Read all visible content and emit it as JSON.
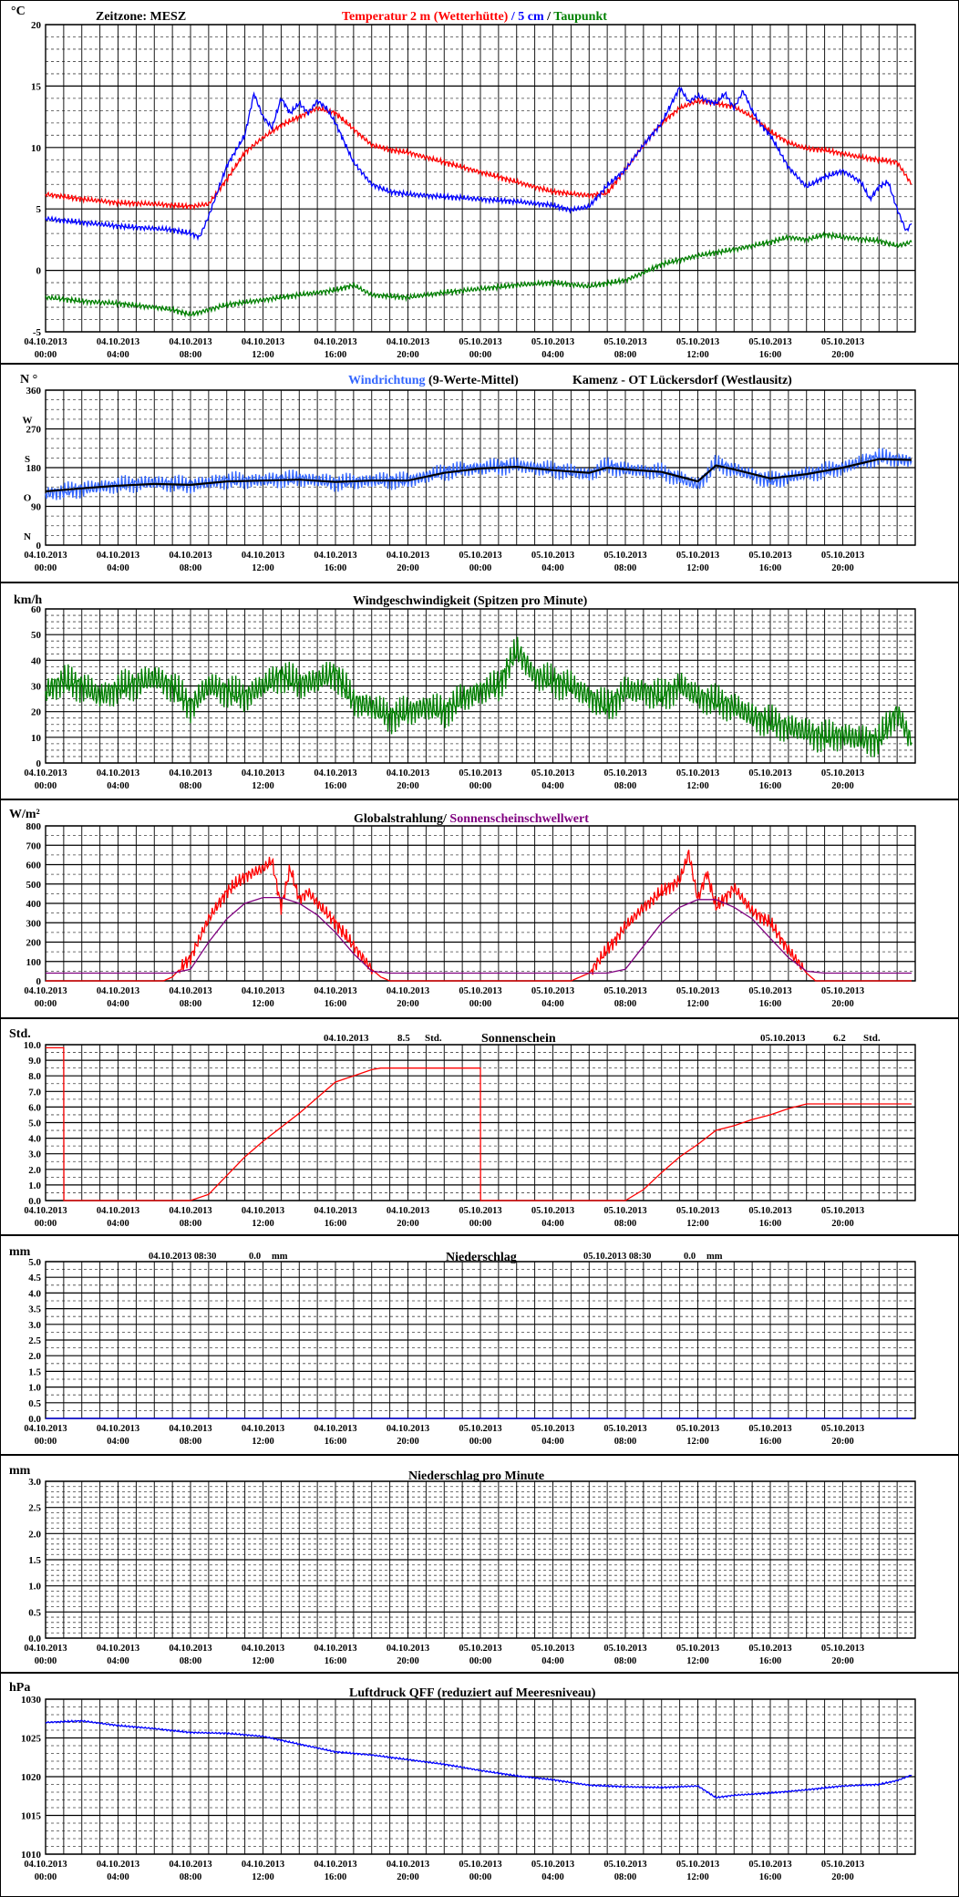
{
  "x_ticks": [
    [
      "04.10.2013",
      "00:00"
    ],
    [
      "04.10.2013",
      "04:00"
    ],
    [
      "04.10.2013",
      "08:00"
    ],
    [
      "04.10.2013",
      "12:00"
    ],
    [
      "04.10.2013",
      "16:00"
    ],
    [
      "04.10.2013",
      "20:00"
    ],
    [
      "05.10.2013",
      "00:00"
    ],
    [
      "05.10.2013",
      "04:00"
    ],
    [
      "05.10.2013",
      "08:00"
    ],
    [
      "05.10.2013",
      "12:00"
    ],
    [
      "05.10.2013",
      "16:00"
    ],
    [
      "05.10.2013",
      "20:00"
    ]
  ],
  "panels": {
    "temperature": {
      "unit": "°C",
      "header_left": "Zeitzone: MESZ",
      "title_parts": [
        {
          "text": "Temperatur 2 m (Wetterhütte)",
          "color": "#ff0000"
        },
        {
          "text": "  /  ",
          "color": "#0000ff"
        },
        {
          "text": "5 cm",
          "color": "#0000ff"
        },
        {
          "text": " / ",
          "color": "#000000"
        },
        {
          "text": "Taupunkt",
          "color": "#008000"
        }
      ],
      "y_ticks": [
        "20",
        "15",
        "10",
        "5",
        "0",
        "-5"
      ]
    },
    "wind_direction": {
      "unit": "N °",
      "title_parts": [
        {
          "text": "Windrichtung",
          "color": "#3366ff"
        },
        {
          "text": " (9-Werte-Mittel)",
          "color": "#000000"
        }
      ],
      "title_right": "Kamenz - OT Lückersdorf (Westlausitz)",
      "y_ticks": [
        "360",
        "270",
        "180",
        "90",
        "0"
      ],
      "compass": [
        "W",
        "S",
        "O",
        "N"
      ]
    },
    "wind_speed": {
      "unit": "km/h",
      "title": "Windgeschwindigkeit (Spitzen pro Minute)",
      "y_ticks": [
        "60",
        "50",
        "40",
        "30",
        "20",
        "10",
        "0"
      ]
    },
    "radiation": {
      "unit": "W/m²",
      "title_parts": [
        {
          "text": "Globalstrahlung/ ",
          "color": "#000000"
        },
        {
          "text": "Sonnenscheinschwellwert",
          "color": "#800080"
        }
      ],
      "y_ticks": [
        "800",
        "700",
        "600",
        "500",
        "400",
        "300",
        "200",
        "100",
        "0"
      ]
    },
    "sunshine": {
      "unit": "Std.",
      "title": "Sonnenschein",
      "day1": {
        "date": "04.10.2013",
        "value": "8.5",
        "unit": "Std."
      },
      "day2": {
        "date": "05.10.2013",
        "value": "6.2",
        "unit": "Std."
      },
      "y_ticks": [
        "10.0",
        "9.0",
        "8.0",
        "7.0",
        "6.0",
        "5.0",
        "4.0",
        "3.0",
        "2.0",
        "1.0",
        "0.0"
      ]
    },
    "precipitation": {
      "unit": "mm",
      "title": "Niederschlag",
      "day1": {
        "date": "04.10.2013 08:30",
        "value": "0.0",
        "unit": "mm"
      },
      "day2": {
        "date": "05.10.2013 08:30",
        "value": "0.0",
        "unit": "mm"
      },
      "y_ticks": [
        "5.0",
        "4.5",
        "4.0",
        "3.5",
        "3.0",
        "2.5",
        "2.0",
        "1.5",
        "1.0",
        "0.5",
        "0.0"
      ]
    },
    "precip_minute": {
      "unit": "mm",
      "title": "Niederschlag pro Minute",
      "y_ticks": [
        "3.0",
        "2.5",
        "2.0",
        "1.5",
        "1.0",
        "0.5",
        "0.0"
      ]
    },
    "pressure": {
      "unit": "hPa",
      "title": "Luftdruck QFF (reduziert auf Meeresniveau)",
      "y_ticks": [
        "1030",
        "1025",
        "1020",
        "1015",
        "1010"
      ]
    }
  },
  "chart_data": [
    {
      "type": "line",
      "x_unit": "hours since 04.10.2013 00:00",
      "ylim": [
        -5,
        20
      ],
      "series": [
        {
          "name": "Temperatur 2 m (Wetterhütte)",
          "color": "#ff0000",
          "x": [
            0,
            2,
            4,
            6,
            8,
            9,
            10,
            11,
            12,
            13,
            14,
            15,
            16,
            17,
            18,
            19,
            20,
            22,
            24,
            26,
            28,
            30,
            31,
            32,
            33,
            34,
            35,
            36,
            37,
            38,
            39,
            40,
            41,
            42,
            43,
            44,
            45,
            46,
            47,
            47.8
          ],
          "y": [
            6.2,
            5.8,
            5.5,
            5.4,
            5.2,
            5.4,
            7.4,
            9.6,
            10.8,
            11.8,
            12.5,
            13.2,
            12.8,
            11.5,
            10.2,
            9.8,
            9.6,
            8.8,
            8.0,
            7.2,
            6.4,
            6.1,
            6.3,
            8.2,
            10.2,
            12.0,
            13.2,
            13.8,
            13.6,
            13.3,
            12.5,
            11.3,
            10.4,
            9.9,
            9.8,
            9.5,
            9.2,
            9.0,
            8.8,
            7.0
          ]
        },
        {
          "name": "5 cm",
          "color": "#0000ff",
          "x": [
            0,
            2,
            4,
            6,
            7,
            8,
            8.5,
            9,
            10,
            11,
            11.5,
            12,
            12.5,
            13,
            13.5,
            14,
            14.5,
            15,
            15.5,
            16,
            17,
            18,
            19,
            20,
            22,
            24,
            26,
            28,
            29,
            30,
            31,
            32,
            33,
            34,
            35,
            35.5,
            36,
            36.5,
            37,
            37.5,
            38,
            38.5,
            39,
            39.5,
            40,
            41,
            42,
            43,
            44,
            45,
            45.5,
            46,
            46.5,
            47,
            47.5,
            47.8
          ],
          "y": [
            4.2,
            3.9,
            3.6,
            3.4,
            3.3,
            3.0,
            2.7,
            4.4,
            8.5,
            11.0,
            14.4,
            12.5,
            11.6,
            14.0,
            12.8,
            13.6,
            12.8,
            13.8,
            13.2,
            12.0,
            8.8,
            7.0,
            6.4,
            6.2,
            6.0,
            5.8,
            5.6,
            5.3,
            4.9,
            5.2,
            6.9,
            8.2,
            10.2,
            12.0,
            14.9,
            13.7,
            14.2,
            13.8,
            13.6,
            14.4,
            13.2,
            14.6,
            13.0,
            11.8,
            11.0,
            8.4,
            6.8,
            7.6,
            8.1,
            7.2,
            5.8,
            6.8,
            7.2,
            5.0,
            3.2,
            3.8
          ]
        },
        {
          "name": "Taupunkt",
          "color": "#008000",
          "x": [
            0,
            2,
            4,
            6,
            7,
            8,
            9,
            10,
            11,
            12,
            14,
            16,
            17,
            18,
            20,
            22,
            24,
            26,
            28,
            30,
            32,
            33,
            34,
            36,
            38,
            40,
            41,
            42,
            43,
            44,
            46,
            47,
            47.8
          ],
          "y": [
            -2.2,
            -2.5,
            -2.7,
            -3.0,
            -3.2,
            -3.6,
            -3.2,
            -2.8,
            -2.6,
            -2.4,
            -2.0,
            -1.6,
            -1.2,
            -2.0,
            -2.2,
            -1.8,
            -1.5,
            -1.2,
            -1.0,
            -1.3,
            -0.8,
            -0.2,
            0.5,
            1.2,
            1.7,
            2.3,
            2.7,
            2.5,
            2.9,
            2.7,
            2.4,
            2.0,
            2.3
          ]
        }
      ]
    },
    {
      "type": "line",
      "x_unit": "hours since 04.10.2013 00:00",
      "ylim": [
        0,
        360
      ],
      "series": [
        {
          "name": "Windrichtung",
          "color": "#3366ff",
          "x": [
            0,
            2,
            4,
            6,
            8,
            10,
            12,
            14,
            16,
            18,
            20,
            22,
            24,
            26,
            28,
            30,
            31,
            32,
            34,
            36,
            37,
            38,
            40,
            42,
            44,
            46,
            47.8
          ],
          "y": [
            120,
            130,
            140,
            145,
            140,
            150,
            150,
            155,
            145,
            150,
            150,
            170,
            180,
            185,
            175,
            165,
            185,
            175,
            170,
            140,
            190,
            175,
            150,
            165,
            180,
            205,
            195
          ]
        },
        {
          "name": "9-Werte-Mittel",
          "color": "#000000",
          "x": [
            0,
            2,
            4,
            6,
            8,
            10,
            12,
            14,
            16,
            18,
            20,
            22,
            24,
            26,
            28,
            30,
            31,
            32,
            34,
            36,
            37,
            38,
            40,
            42,
            44,
            46,
            47.8
          ],
          "y": [
            125,
            132,
            138,
            142,
            140,
            148,
            150,
            152,
            147,
            150,
            150,
            168,
            178,
            182,
            174,
            168,
            180,
            176,
            170,
            148,
            185,
            176,
            155,
            165,
            180,
            200,
            198
          ]
        }
      ]
    },
    {
      "type": "line",
      "x_unit": "hours since 04.10.2013 00:00",
      "ylim": [
        0,
        60
      ],
      "series": [
        {
          "name": "Windgeschwindigkeit",
          "color": "#008000",
          "x": [
            0,
            1,
            2,
            3,
            4,
            5,
            6,
            7,
            8,
            9,
            10,
            11,
            12,
            13,
            14,
            15,
            16,
            17,
            18,
            19,
            20,
            21,
            22,
            23,
            24,
            25,
            26,
            27,
            28,
            29,
            30,
            31,
            32,
            33,
            34,
            35,
            36,
            37,
            38,
            39,
            40,
            41,
            42,
            43,
            44,
            45,
            46,
            47,
            47.8
          ],
          "y": [
            28,
            32,
            30,
            26,
            29,
            31,
            33,
            30,
            22,
            30,
            28,
            26,
            30,
            34,
            31,
            32,
            35,
            24,
            22,
            18,
            20,
            22,
            20,
            25,
            28,
            30,
            44,
            34,
            32,
            30,
            26,
            22,
            28,
            28,
            26,
            30,
            26,
            24,
            22,
            18,
            16,
            14,
            12,
            10,
            11,
            9,
            9,
            20,
            8
          ]
        }
      ]
    },
    {
      "type": "line",
      "x_unit": "hours since 04.10.2013 00:00",
      "ylim": [
        0,
        800
      ],
      "series": [
        {
          "name": "Globalstrahlung",
          "color": "#ff0000",
          "x": [
            0,
            6.5,
            7,
            8,
            9,
            10,
            11,
            12,
            12.5,
            13,
            13.5,
            14,
            14.5,
            15,
            16,
            17,
            18,
            18.5,
            19,
            29,
            30,
            31,
            32,
            33,
            34,
            35,
            35.5,
            36,
            36.5,
            37,
            38,
            39,
            40,
            41,
            42,
            42.5,
            47.8
          ],
          "y": [
            0,
            0,
            20,
            120,
            320,
            460,
            540,
            580,
            620,
            380,
            580,
            420,
            460,
            400,
            300,
            180,
            60,
            20,
            0,
            0,
            40,
            160,
            280,
            380,
            460,
            520,
            660,
            420,
            560,
            380,
            480,
            360,
            300,
            160,
            40,
            0,
            0
          ]
        },
        {
          "name": "Sonnenscheinschwellwert",
          "color": "#800080",
          "x": [
            0,
            7,
            8,
            9,
            10,
            11,
            12,
            13,
            14,
            15,
            16,
            17,
            18,
            19,
            31,
            32,
            33,
            34,
            35,
            36,
            37,
            38,
            39,
            40,
            41,
            42,
            43,
            47.8
          ],
          "y": [
            40,
            40,
            60,
            200,
            320,
            400,
            430,
            430,
            400,
            340,
            250,
            140,
            50,
            40,
            40,
            60,
            180,
            300,
            380,
            420,
            420,
            380,
            320,
            220,
            120,
            50,
            40,
            40
          ]
        }
      ]
    },
    {
      "type": "line",
      "x_unit": "hours since 04.10.2013 00:00",
      "ylim": [
        0,
        10
      ],
      "series": [
        {
          "name": "Sonnenschein",
          "color": "#ff0000",
          "x": [
            0,
            1,
            1.01,
            8,
            9,
            10,
            11,
            12,
            13,
            14,
            15,
            16,
            17,
            18,
            18.5,
            24,
            24.01,
            32,
            33,
            34,
            35,
            36,
            37,
            38,
            39,
            40,
            41,
            42,
            47.8
          ],
          "y": [
            9.8,
            9.8,
            0,
            0,
            0.4,
            1.6,
            2.8,
            3.8,
            4.7,
            5.6,
            6.6,
            7.6,
            8.0,
            8.4,
            8.5,
            8.5,
            0,
            0,
            0.7,
            1.8,
            2.8,
            3.6,
            4.5,
            4.8,
            5.2,
            5.5,
            5.9,
            6.2,
            6.2
          ]
        }
      ]
    },
    {
      "type": "line",
      "x_unit": "hours since 04.10.2013 00:00",
      "ylim": [
        0,
        5
      ],
      "series": [
        {
          "name": "Niederschlag",
          "color": "#0000ff",
          "x": [
            0,
            47.8
          ],
          "y": [
            0,
            0
          ]
        }
      ]
    },
    {
      "type": "line",
      "x_unit": "hours since 04.10.2013 00:00",
      "ylim": [
        0,
        3
      ],
      "series": []
    },
    {
      "type": "line",
      "x_unit": "hours since 04.10.2013 00:00",
      "ylim": [
        1010,
        1030
      ],
      "series": [
        {
          "name": "Luftdruck QFF",
          "color": "#0000ff",
          "x": [
            0,
            2,
            4,
            6,
            8,
            10,
            12,
            14,
            16,
            18,
            20,
            22,
            24,
            26,
            28,
            30,
            32,
            34,
            36,
            37,
            38,
            40,
            42,
            44,
            46,
            47,
            47.8
          ],
          "y": [
            1027.0,
            1027.2,
            1026.6,
            1026.2,
            1025.7,
            1025.6,
            1025.2,
            1024.2,
            1023.2,
            1022.8,
            1022.2,
            1021.6,
            1020.8,
            1020.1,
            1019.6,
            1018.9,
            1018.7,
            1018.6,
            1018.8,
            1017.3,
            1017.6,
            1017.9,
            1018.3,
            1018.8,
            1019.0,
            1019.5,
            1020.2
          ]
        }
      ]
    }
  ]
}
